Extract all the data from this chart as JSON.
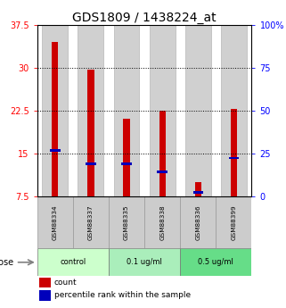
{
  "title": "GDS1809 / 1438224_at",
  "samples": [
    "GSM88334",
    "GSM88337",
    "GSM88335",
    "GSM88338",
    "GSM88336",
    "GSM88399"
  ],
  "count_values": [
    34.5,
    29.6,
    21.0,
    22.5,
    10.0,
    22.8
  ],
  "percentile_values_left_axis": [
    15.5,
    13.2,
    13.2,
    11.8,
    8.2,
    14.2
  ],
  "ylim_left": [
    7.5,
    37.5
  ],
  "ylim_right": [
    0,
    100
  ],
  "yticks_left": [
    7.5,
    15,
    22.5,
    30,
    37.5
  ],
  "yticks_right": [
    0,
    25,
    50,
    75,
    100
  ],
  "ytick_labels_left": [
    "7.5",
    "15",
    "22.5",
    "30",
    "37.5"
  ],
  "ytick_labels_right": [
    "0",
    "25",
    "50",
    "75",
    "100%"
  ],
  "hlines": [
    15,
    22.5,
    30
  ],
  "count_color": "#cc0000",
  "percentile_color": "#0000bb",
  "bar_bg_color": "#d0d0d0",
  "sample_box_color": "#cccccc",
  "groups": [
    {
      "label": "control",
      "samples": [
        0,
        1
      ],
      "color": "#ccffcc"
    },
    {
      "label": "0.1 ug/ml",
      "samples": [
        2,
        3
      ],
      "color": "#aaeebb"
    },
    {
      "label": "0.5 ug/ml",
      "samples": [
        4,
        5
      ],
      "color": "#66dd88"
    }
  ],
  "dose_label": "dose",
  "legend_count": "count",
  "legend_percentile": "percentile rank within the sample",
  "title_fontsize": 10,
  "tick_fontsize": 7,
  "bar_width": 0.18,
  "blue_marker_size": 0.4
}
